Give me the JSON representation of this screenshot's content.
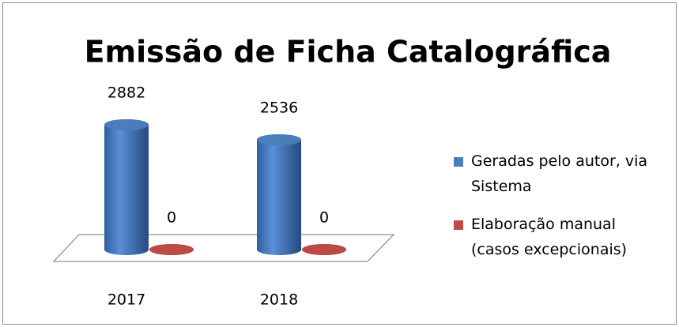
{
  "chart_data": {
    "type": "bar3d-cylinder",
    "title": "Emissão de Ficha Catalográfica",
    "categories": [
      "2017",
      "2018"
    ],
    "series": [
      {
        "name": "Geradas pelo autor, via Sistema",
        "color": "#4a7ebb",
        "values": [
          2882,
          2536
        ]
      },
      {
        "name": "Elaboração manual (casos excepcionais)",
        "color": "#be4b48",
        "values": [
          0,
          0
        ]
      }
    ],
    "legend": "right"
  }
}
